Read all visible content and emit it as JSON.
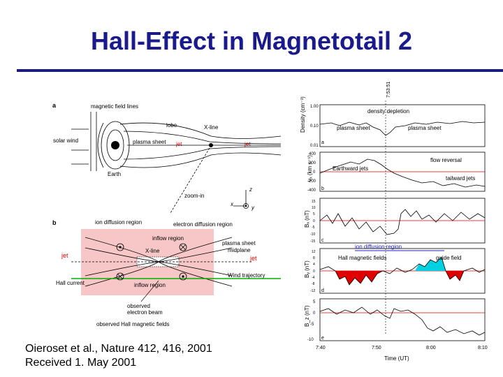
{
  "slide": {
    "title": "Hall-Effect in Magnetotail  2",
    "citation_line1": "Oieroset et al., Nature 412, 416, 2001",
    "citation_line2": "Received 1. May 2001"
  },
  "diagram_a": {
    "panel_label": "a",
    "magnetic_field_lines": "magnetic field lines",
    "lobe": "lobe",
    "x_line": "X-line",
    "solar_wind": "solar wind",
    "plasma_sheet": "plasma sheet",
    "jet_left": "jet",
    "jet_right": "jet",
    "earth": "Earth",
    "zoom_in": "zoom-in",
    "axis_z": "z",
    "axis_x": "x",
    "axis_y": "y"
  },
  "diagram_b": {
    "panel_label": "b",
    "ion_diffusion_region": "ion diffusion region",
    "electron_diffusion_region": "electron diffusion region",
    "inflow_region_top": "inflow region",
    "x_line": "X-line",
    "plasma_sheet_midplane_1": "plasma sheet",
    "plasma_sheet_midplane_2": "midplane",
    "jet_left": "jet",
    "jet_right": "jet",
    "hall_current": "Hall current",
    "inflow_region_bottom": "inflow region",
    "wind_trajectory": "Wind trajectory",
    "observed_1": "observed",
    "observed_2": "electron beam",
    "observed_hall_fields": "observed Hall magnetic fields"
  },
  "plots": {
    "time_marker": "7:53:51",
    "density": {
      "ylabel": "Density (cm⁻³)",
      "ticks": [
        "1.00",
        "0.10",
        "0.01"
      ],
      "panel": "a",
      "ann_depletion": "density depletion",
      "ann_ps_left": "plasma sheet",
      "ann_ps_right": "plasma sheet"
    },
    "velocity": {
      "ylabel": "vₓ (km s⁻¹)",
      "ticks": [
        "400",
        "200",
        "0",
        "-200",
        "-400"
      ],
      "panel": "b",
      "ann_flow_reversal": "flow reversal",
      "ann_earthward": "Earthward jets",
      "ann_tailward": "tailward jets"
    },
    "bx": {
      "ylabel": "Bₓ (nT)",
      "ticks": [
        "15",
        "10",
        "5",
        "0",
        "-5",
        "-10",
        "-15"
      ],
      "panel": "c",
      "ann_ion_region": "ion diffusion region"
    },
    "by": {
      "ylabel": "Bᵧ (nT)",
      "ticks": [
        "12",
        "8",
        "4",
        "0",
        "-4",
        "-8",
        "-12"
      ],
      "panel": "d",
      "ann_hall": "Hall magnetic fields",
      "ann_guide": "guide field"
    },
    "bz": {
      "ylabel": "B_z (nT)",
      "ticks": [
        "5",
        "0",
        "-5",
        "-10"
      ],
      "panel": "e"
    },
    "x_ticks": [
      "7:40",
      "7:50",
      "8:00",
      "8:10"
    ],
    "xlabel": "Time (UT)"
  },
  "colors": {
    "title": "#1a1a8c",
    "jet_red": "#e00000",
    "trajectory_green": "#00b000",
    "hall_red": "#e00000",
    "guide_cyan": "#00d0e0",
    "inflow_pink": "#f7c6c6",
    "ion_label_blue": "#2020c0"
  }
}
